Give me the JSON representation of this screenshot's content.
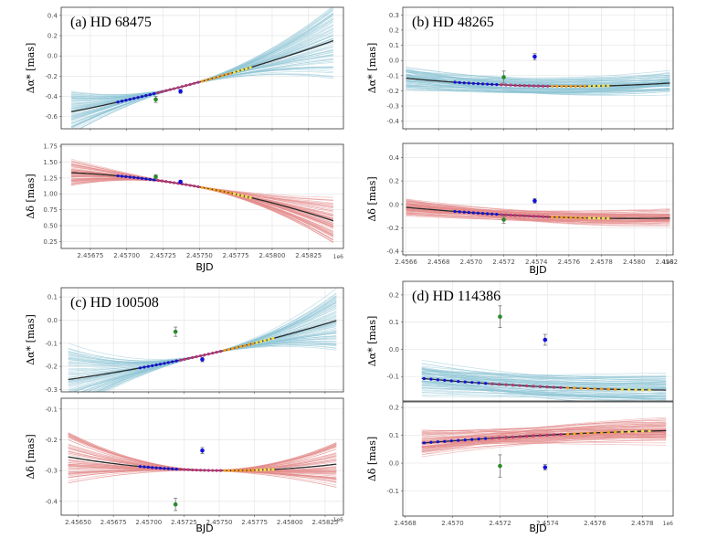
{
  "figure": {
    "ylabel_alpha": "Δα* [mas]",
    "ylabel_delta": "Δδ [mas]",
    "xlabel": "BJD",
    "offset_text": "1e6"
  },
  "colors": {
    "alpha_band": "#8ec5d6",
    "delta_band": "#e48a8a",
    "model": "#2b2b2b",
    "grid": "#e6e6e6",
    "gaia": "#1010e0",
    "hip": "#2a8a2a",
    "early": "#c0307a",
    "late": "#f5a021",
    "latest": "#f2e04a"
  },
  "chart_data": [
    {
      "id": "a",
      "type": "line",
      "title": "(a) HD 68475",
      "x_range": [
        2.45655,
        2.45849
      ],
      "x_ticks": [
        "2.45675",
        "2.45700",
        "2.45725",
        "2.45750",
        "2.45775",
        "2.45800",
        "2.45825"
      ],
      "x_tick_values": [
        2.45675,
        2.457,
        2.45725,
        2.4575,
        2.45775,
        2.458,
        2.45825
      ],
      "alpha": {
        "ylim": [
          -0.72,
          0.48
        ],
        "y_ticks": [
          -0.6,
          -0.4,
          -0.2,
          0.0,
          0.2,
          0.4
        ],
        "y_tick_labels": [
          "-0.6",
          "-0.4",
          "-0.2",
          "0.0",
          "0.2",
          "0.4"
        ],
        "model": {
          "kind": "poly",
          "x0": 2.45752,
          "c": [
            -0.25,
            3.9,
            6.0
          ],
          "x_start": 2.45662,
          "x_end": 2.45842
        },
        "band_spread": 0.3,
        "dot_range": [
          2.45694,
          2.45785
        ],
        "offset_points": [
          {
            "x": 2.4572,
            "y": -0.43,
            "err": 0.03,
            "role": "hip"
          },
          {
            "x": 2.45737,
            "y": -0.35,
            "err": 0.02,
            "role": "gaia"
          }
        ]
      },
      "delta": {
        "ylim": [
          0.14,
          1.78
        ],
        "y_ticks": [
          0.25,
          0.5,
          0.75,
          1.0,
          1.25,
          1.5,
          1.75
        ],
        "y_tick_labels": [
          "0.25",
          "0.50",
          "0.75",
          "1.00",
          "1.25",
          "1.50",
          "1.75"
        ],
        "model": {
          "kind": "poly",
          "x0": 2.45752,
          "c": [
            1.1,
            -4.2,
            -18.0
          ],
          "x_start": 2.45662,
          "x_end": 2.45842
        },
        "band_spread": 0.3,
        "dot_range": [
          2.45694,
          2.45785
        ],
        "offset_points": [
          {
            "x": 2.4572,
            "y": 1.27,
            "err": 0.03,
            "role": "hip"
          },
          {
            "x": 2.45737,
            "y": 1.19,
            "err": 0.02,
            "role": "gaia"
          }
        ]
      }
    },
    {
      "id": "b",
      "type": "line",
      "title": "(b) HD 48265",
      "x_range": [
        2.45658,
        2.45824
      ],
      "x_ticks": [
        "2.4566",
        "2.4568",
        "2.4570",
        "2.4572",
        "2.4574",
        "2.4576",
        "2.4578",
        "2.4580",
        "2.4582"
      ],
      "x_tick_values": [
        2.4566,
        2.4568,
        2.457,
        2.4572,
        2.4574,
        2.4576,
        2.4578,
        2.458,
        2.4582
      ],
      "alpha": {
        "ylim": [
          -0.45,
          0.35
        ],
        "y_ticks": [
          -0.4,
          -0.3,
          -0.2,
          -0.1,
          0.0,
          0.1,
          0.2,
          0.3
        ],
        "y_tick_labels": [
          "-0.4",
          "-0.3",
          "-0.2",
          "-0.1",
          "0.0",
          "0.1",
          "0.2",
          "0.3"
        ],
        "model": {
          "kind": "sin",
          "m": 0.0,
          "s": 0.0,
          "A": 0.17,
          "x0": 2.4566,
          "P": 0.00772,
          "phi": 3.9,
          "damp": 0.0,
          "x_start": 2.4566,
          "x_end": 2.45822
        },
        "band_spread": 0.15,
        "dot_range": [
          2.4569,
          2.45784
        ],
        "offset_points": [
          {
            "x": 2.4572,
            "y": -0.11,
            "err": 0.04,
            "role": "hip"
          },
          {
            "x": 2.45739,
            "y": 0.025,
            "err": 0.02,
            "role": "gaia"
          }
        ]
      },
      "delta": {
        "ylim": [
          -0.43,
          0.52
        ],
        "y_ticks": [
          -0.4,
          -0.2,
          0.0,
          0.2,
          0.4
        ],
        "y_tick_labels": [
          "-0.4",
          "-0.2",
          "0.0",
          "0.2",
          "0.4"
        ],
        "model": {
          "kind": "sin",
          "m": 0.05,
          "s": 0.0,
          "A": 0.17,
          "x0": 2.4566,
          "P": 0.00772,
          "phi": 3.6,
          "damp": 0.0,
          "x_start": 2.4566,
          "x_end": 2.45822
        },
        "band_spread": 0.15,
        "dot_range": [
          2.4569,
          2.45784
        ],
        "offset_points": [
          {
            "x": 2.4572,
            "y": -0.13,
            "err": 0.03,
            "role": "hip"
          },
          {
            "x": 2.45739,
            "y": 0.03,
            "err": 0.02,
            "role": "gaia"
          }
        ]
      }
    },
    {
      "id": "c",
      "type": "line",
      "title": "(c) HD 100508",
      "x_range": [
        2.45638,
        2.45838
      ],
      "x_ticks": [
        "2.45650",
        "2.45675",
        "2.45700",
        "2.45725",
        "2.45750",
        "2.45775",
        "2.45800",
        "2.45825"
      ],
      "x_tick_values": [
        2.4565,
        2.45675,
        2.457,
        2.45725,
        2.4575,
        2.45775,
        2.458,
        2.45825
      ],
      "alpha": {
        "ylim": [
          -0.31,
          0.14
        ],
        "y_ticks": [
          -0.3,
          -0.2,
          -0.1,
          0.0,
          0.1
        ],
        "y_tick_labels": [
          "-0.3",
          "-0.2",
          "-0.1",
          "0.0",
          "0.1"
        ],
        "model": {
          "kind": "poly",
          "x0": 2.4574,
          "c": [
            -0.15,
            1.35,
            2.6
          ],
          "x_start": 2.45643,
          "x_end": 2.45833
        },
        "band_spread": 0.15,
        "dot_range": [
          2.45694,
          2.45788
        ],
        "offset_points": [
          {
            "x": 2.45719,
            "y": -0.05,
            "err": 0.02,
            "role": "hip"
          },
          {
            "x": 2.45738,
            "y": -0.17,
            "err": 0.01,
            "role": "gaia"
          }
        ]
      },
      "delta": {
        "ylim": [
          -0.445,
          -0.065
        ],
        "y_ticks": [
          -0.4,
          -0.3,
          -0.2,
          -0.1
        ],
        "y_tick_labels": [
          "-0.4",
          "-0.3",
          "-0.2",
          "-0.1"
        ],
        "model": {
          "kind": "poly",
          "x0": 2.4576,
          "c": [
            -0.3,
            0.03,
            3.5
          ],
          "x_start": 2.45643,
          "x_end": 2.45833
        },
        "band_spread": 0.09,
        "dot_range": [
          2.45694,
          2.45788
        ],
        "offset_points": [
          {
            "x": 2.45719,
            "y": -0.41,
            "err": 0.02,
            "role": "hip"
          },
          {
            "x": 2.45738,
            "y": -0.235,
            "err": 0.01,
            "role": "gaia"
          }
        ]
      }
    },
    {
      "id": "d",
      "type": "line",
      "title": "(d) HD 114386",
      "x_range": [
        2.45679,
        2.45793
      ],
      "x_ticks": [
        "2.4568",
        "2.4570",
        "2.4572",
        "2.4574",
        "2.4576",
        "2.4578"
      ],
      "x_tick_values": [
        2.4568,
        2.457,
        2.4572,
        2.4574,
        2.4576,
        2.4578
      ],
      "alpha": {
        "ylim": [
          -0.19,
          0.25
        ],
        "y_ticks": [
          -0.1,
          0.0,
          0.1,
          0.2
        ],
        "y_tick_labels": [
          "-0.1",
          "0.0",
          "0.1",
          "0.2"
        ],
        "model": {
          "kind": "sin",
          "m": 0.005,
          "s": 0.0,
          "A": 0.155,
          "x0": 2.4568,
          "P": 0.0089,
          "phi": 3.9,
          "damp": 0.0,
          "x_start": 2.45687,
          "x_end": 2.4579
        },
        "band_spread": 0.06,
        "dot_range": [
          2.45688,
          2.45783
        ],
        "offset_points": [
          {
            "x": 2.4572,
            "y": 0.12,
            "err": 0.04,
            "role": "hip"
          },
          {
            "x": 2.45739,
            "y": 0.035,
            "err": 0.02,
            "role": "gaia"
          }
        ]
      },
      "delta": {
        "ylim": [
          -0.19,
          0.22
        ],
        "y_ticks": [
          -0.1,
          0.0,
          0.1,
          0.2
        ],
        "y_tick_labels": [
          "-0.1",
          "0.0",
          "0.1",
          "0.2"
        ],
        "model": {
          "kind": "sin",
          "m": 0.0,
          "s": 0.0,
          "A": 0.12,
          "x0": 2.4568,
          "P": 0.0094,
          "phi": 0.6,
          "damp": 0.0,
          "x_start": 2.45687,
          "x_end": 2.4579
        },
        "band_spread": 0.06,
        "dot_range": [
          2.45688,
          2.45783
        ],
        "offset_points": [
          {
            "x": 2.4572,
            "y": -0.01,
            "err": 0.04,
            "role": "hip"
          },
          {
            "x": 2.45739,
            "y": -0.015,
            "err": 0.01,
            "role": "gaia"
          }
        ]
      }
    }
  ]
}
